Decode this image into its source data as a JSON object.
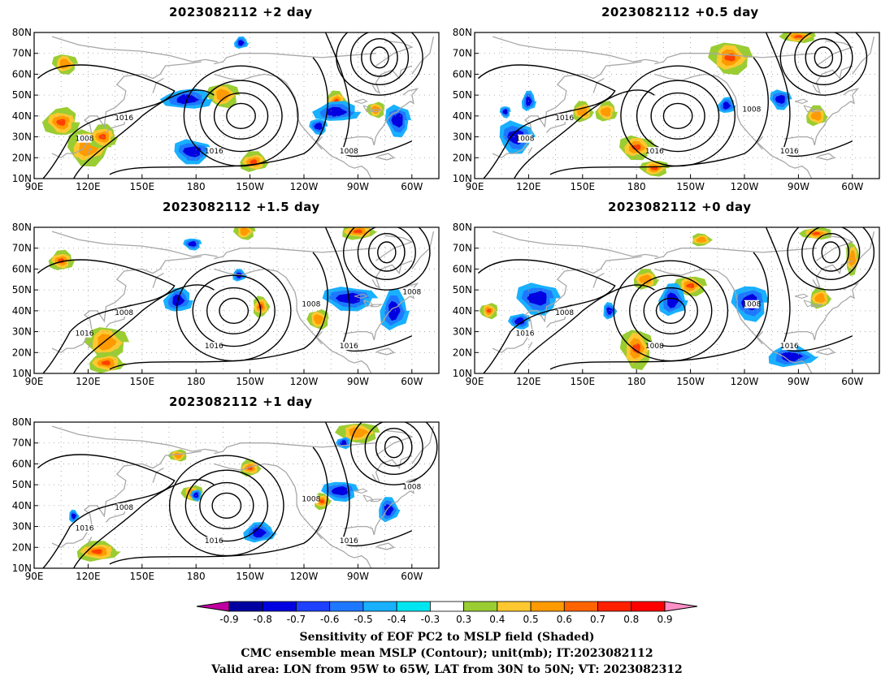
{
  "panels": [
    {
      "id": "p2",
      "title": "2023082112  +2 day",
      "contour_labels": [
        "1016",
        "1008",
        "1016",
        "1008"
      ],
      "positive_patches": [
        [
          105,
          37,
          10,
          7
        ],
        [
          120,
          25,
          12,
          9
        ],
        [
          128,
          30,
          8,
          6
        ],
        [
          107,
          65,
          7,
          5
        ],
        [
          212,
          18,
          8,
          5
        ],
        [
          195,
          50,
          9,
          6
        ],
        [
          258,
          47,
          6,
          5
        ],
        [
          280,
          43,
          5,
          4
        ]
      ],
      "negative_patches": [
        [
          175,
          48,
          14,
          5
        ],
        [
          178,
          23,
          11,
          6
        ],
        [
          258,
          42,
          13,
          5
        ],
        [
          292,
          38,
          7,
          8
        ],
        [
          205,
          75,
          4,
          3
        ],
        [
          248,
          35,
          5,
          4
        ]
      ]
    },
    {
      "id": "p05",
      "title": "2023082112  +0.5 day",
      "contour_labels": [
        "1016",
        "1008",
        "1016",
        "1016",
        "1008"
      ],
      "positive_patches": [
        [
          180,
          25,
          10,
          6
        ],
        [
          163,
          42,
          6,
          5
        ],
        [
          232,
          68,
          12,
          8
        ],
        [
          280,
          40,
          6,
          5
        ],
        [
          190,
          15,
          8,
          4
        ],
        [
          150,
          42,
          6,
          5
        ],
        [
          270,
          78,
          10,
          3
        ]
      ],
      "negative_patches": [
        [
          113,
          30,
          10,
          8
        ],
        [
          230,
          45,
          5,
          4
        ],
        [
          260,
          48,
          6,
          5
        ],
        [
          120,
          47,
          4,
          5
        ],
        [
          107,
          42,
          3,
          3
        ]
      ]
    },
    {
      "id": "p15",
      "title": "2023082112  +1.5 day",
      "contour_labels": [
        "1008",
        "1016",
        "1016",
        "1016",
        "1008",
        "1008"
      ],
      "positive_patches": [
        [
          105,
          64,
          7,
          5
        ],
        [
          130,
          25,
          12,
          8
        ],
        [
          130,
          15,
          10,
          5
        ],
        [
          207,
          78,
          6,
          4
        ],
        [
          270,
          78,
          10,
          4
        ],
        [
          248,
          36,
          6,
          5
        ],
        [
          216,
          42,
          5,
          5
        ]
      ],
      "negative_patches": [
        [
          170,
          45,
          8,
          6
        ],
        [
          265,
          46,
          15,
          6
        ],
        [
          290,
          40,
          8,
          10
        ],
        [
          178,
          72,
          5,
          3
        ],
        [
          204,
          57,
          4,
          3
        ]
      ]
    },
    {
      "id": "p0",
      "title": "2023082112  +0 day",
      "contour_labels": [
        "1008",
        "1016",
        "1008",
        "1016",
        "1008"
      ],
      "positive_patches": [
        [
          180,
          22,
          9,
          10
        ],
        [
          185,
          55,
          7,
          5
        ],
        [
          210,
          52,
          9,
          5
        ],
        [
          282,
          46,
          6,
          5
        ],
        [
          98,
          40,
          5,
          4
        ],
        [
          216,
          74,
          6,
          3
        ],
        [
          280,
          77,
          9,
          3
        ],
        [
          300,
          65,
          4,
          8
        ]
      ],
      "negative_patches": [
        [
          125,
          46,
          12,
          8
        ],
        [
          200,
          45,
          8,
          8
        ],
        [
          243,
          44,
          10,
          9
        ],
        [
          266,
          18,
          14,
          5
        ],
        [
          115,
          35,
          6,
          4
        ],
        [
          165,
          40,
          4,
          4
        ]
      ]
    },
    {
      "id": "p1",
      "title": "2023082112  +1 day",
      "contour_labels": [
        "1008",
        "1016",
        "1016",
        "1016",
        "1008",
        "1008"
      ],
      "positive_patches": [
        [
          125,
          18,
          12,
          5
        ],
        [
          270,
          75,
          12,
          5
        ],
        [
          210,
          58,
          6,
          4
        ],
        [
          178,
          46,
          6,
          4
        ],
        [
          250,
          42,
          5,
          4
        ],
        [
          170,
          64,
          5,
          3
        ]
      ],
      "negative_patches": [
        [
          215,
          27,
          9,
          5
        ],
        [
          260,
          47,
          10,
          5
        ],
        [
          287,
          38,
          6,
          6
        ],
        [
          180,
          45,
          3,
          3
        ],
        [
          112,
          35,
          3,
          3
        ],
        [
          262,
          70,
          4,
          3
        ]
      ]
    }
  ],
  "lon_ticks": [
    "90E",
    "120E",
    "150E",
    "180",
    "150W",
    "120W",
    "90W",
    "60W"
  ],
  "lat_ticks": [
    "80N",
    "70N",
    "60N",
    "50N",
    "40N",
    "30N",
    "20N",
    "10N"
  ],
  "colorbar": {
    "labels": [
      "-0.9",
      "-0.8",
      "-0.7",
      "-0.6",
      "-0.5",
      "-0.4",
      "-0.3",
      "0.3",
      "0.4",
      "0.5",
      "0.6",
      "0.7",
      "0.8",
      "0.9"
    ],
    "colors": [
      "#c000a0",
      "#0000a0",
      "#0000e0",
      "#1e40ff",
      "#1e78ff",
      "#18b0ff",
      "#00e6f0",
      "#ffffff",
      "#9acd32",
      "#ffc830",
      "#ff9a00",
      "#ff6400",
      "#ff2000",
      "#ff0000",
      "#ff90c8"
    ]
  },
  "caption": {
    "line1": "Sensitivity of EOF PC2 to MSLP field (Shaded)",
    "line2": "CMC ensemble mean MSLP (Contour); unit(mb); IT:2023082112",
    "line3": "Valid area: LON from 95W to 65W, LAT from 30N to 50N; VT: 2023082312"
  }
}
